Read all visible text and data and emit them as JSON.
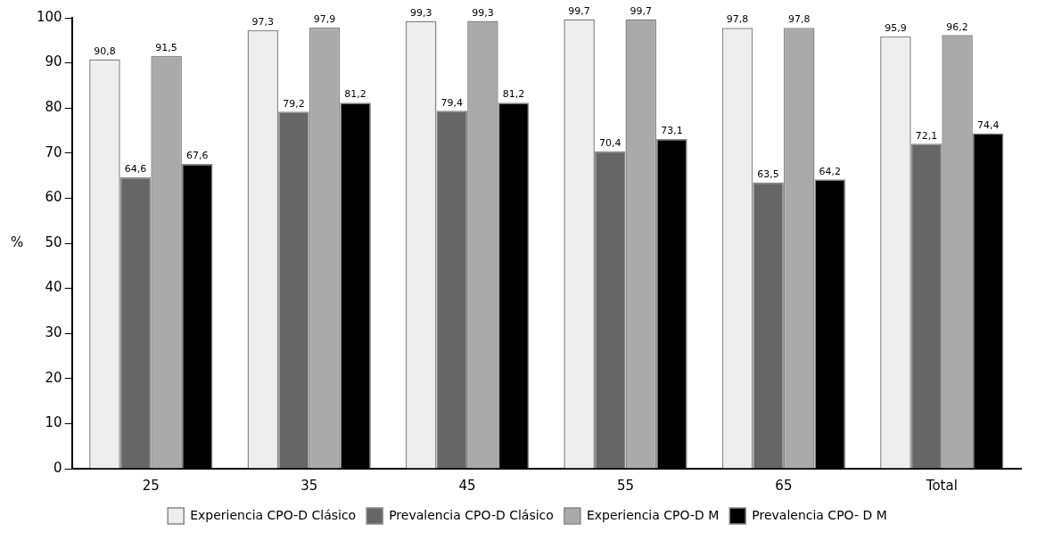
{
  "chart_data": {
    "type": "bar",
    "ylabel": "%",
    "categories": [
      "25",
      "35",
      "45",
      "55",
      "65",
      "Total"
    ],
    "series": [
      {
        "name": "Experiencia CPO-D Clásico",
        "color": "#eeeeee",
        "values": [
          90.8,
          97.3,
          99.3,
          99.7,
          97.8,
          95.9
        ],
        "value_labels": [
          "90,8",
          "97,3",
          "99,3",
          "99,7",
          "97,8",
          "95,9"
        ]
      },
      {
        "name": "Prevalencia CPO-D Clásico",
        "color": "#666666",
        "values": [
          64.6,
          79.2,
          79.4,
          70.4,
          63.5,
          72.1
        ],
        "value_labels": [
          "64,6",
          "79,2",
          "79,4",
          "70,4",
          "63,5",
          "72,1"
        ]
      },
      {
        "name": "Experiencia CPO-D M",
        "color": "#aaaaaa",
        "values": [
          91.5,
          97.9,
          99.3,
          99.7,
          97.8,
          96.2
        ],
        "value_labels": [
          "91,5",
          "97,9",
          "99,3",
          "99,7",
          "97,8",
          "96,2"
        ]
      },
      {
        "name": "Prevalencia CPO- D M",
        "color": "#000000",
        "values": [
          67.6,
          81.2,
          81.2,
          73.1,
          64.2,
          74.4
        ],
        "value_labels": [
          "67,6",
          "81,2",
          "81,2",
          "73,1",
          "64,2",
          "74,4"
        ]
      }
    ],
    "ylim": [
      0,
      100
    ],
    "yticks": [
      0,
      10,
      20,
      30,
      40,
      50,
      60,
      70,
      80,
      90,
      100
    ],
    "grid": false,
    "legend": "bottom"
  }
}
